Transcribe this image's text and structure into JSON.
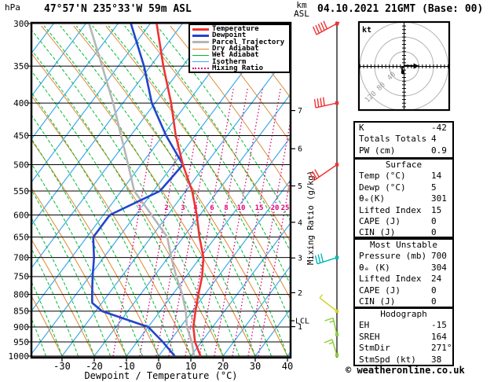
{
  "header": {
    "station_title": "47°57'N 235°33'W 59m ASL",
    "datetime_title": "04.10.2021 21GMT (Base: 00)"
  },
  "axes": {
    "pressure_unit": "hPa",
    "pressure_ticks": [
      300,
      350,
      400,
      450,
      500,
      550,
      600,
      650,
      700,
      750,
      800,
      850,
      900,
      950,
      1000
    ],
    "temp_ticks": [
      -30,
      -20,
      -10,
      0,
      10,
      20,
      30,
      40
    ],
    "xlabel": "Dewpoint / Temperature (°C)",
    "km_unit_line1": "km",
    "km_unit_line2": "ASL",
    "km_ticks": [
      1,
      2,
      3,
      4,
      5,
      6,
      7
    ],
    "lcl_label": "LCL",
    "mixing_axis_label": "Mixing Ratio (g/kg)"
  },
  "legend": [
    {
      "label": "Temperature",
      "color": "#ee3333",
      "weight": 3,
      "style": "solid"
    },
    {
      "label": "Dewpoint",
      "color": "#2244cc",
      "weight": 3,
      "style": "solid"
    },
    {
      "label": "Parcel Trajectory",
      "color": "#b5b5b5",
      "weight": 3,
      "style": "solid"
    },
    {
      "label": "Dry Adiabat",
      "color": "#dd8833",
      "weight": 1,
      "style": "solid"
    },
    {
      "label": "Wet Adiabat",
      "color": "#00bb33",
      "weight": 1,
      "style": "solid"
    },
    {
      "label": "Isotherm",
      "color": "#3aaaee",
      "weight": 1,
      "style": "solid"
    },
    {
      "label": "Mixing Ratio",
      "color": "#dd0077",
      "weight": 2,
      "style": "dotted"
    }
  ],
  "hodograph": {
    "unit_label": "kt",
    "rings_kt": [
      40,
      80,
      120
    ],
    "tick_step_kt": 10,
    "trace_uv_kt": [
      [
        -4,
        -16
      ],
      [
        -6,
        -4
      ],
      [
        2,
        2
      ],
      [
        30,
        1
      ]
    ],
    "storm_dir_deg": 271,
    "storm_speed_kt": 38
  },
  "tables": [
    {
      "title": null,
      "rows": [
        [
          "K",
          "-42"
        ],
        [
          "Totals Totals",
          "4"
        ],
        [
          "PW (cm)",
          "0.9"
        ]
      ]
    },
    {
      "title": "Surface",
      "rows": [
        [
          "Temp (°C)",
          "14"
        ],
        [
          "Dewp (°C)",
          "5"
        ],
        [
          "θₑ(K)",
          "301"
        ],
        [
          "Lifted Index",
          "15"
        ],
        [
          "CAPE (J)",
          "0"
        ],
        [
          "CIN (J)",
          "0"
        ]
      ]
    },
    {
      "title": "Most Unstable",
      "rows": [
        [
          "Pressure (mb)",
          "700"
        ],
        [
          "θₑ (K)",
          "304"
        ],
        [
          "Lifted Index",
          "24"
        ],
        [
          "CAPE (J)",
          "0"
        ],
        [
          "CIN (J)",
          "0"
        ]
      ]
    },
    {
      "title": "Hodograph",
      "rows": [
        [
          "EH",
          "-15"
        ],
        [
          "SREH",
          "164"
        ],
        [
          "StmDir",
          "271°"
        ],
        [
          "StmSpd (kt)",
          "38"
        ]
      ]
    }
  ],
  "footer": {
    "credit": "© weatheronline.co.uk"
  },
  "colors": {
    "temperature": "#ee3333",
    "dewpoint": "#2244cc",
    "parcel": "#b5b5b5",
    "dry_adiabat": "#dd8833",
    "wet_adiabat": "#00bb33",
    "isotherm": "#3aaaee",
    "mixing_ratio": "#dd0077",
    "barb_red": "#ee3333",
    "barb_cyan": "#00b8b8",
    "barb_yellow": "#d4d42a",
    "barb_green": "#8ccf3a",
    "hodo_ring": "#b0b0b0",
    "frame": "#000000"
  },
  "wind_barbs": [
    {
      "pressure": 300,
      "color_key": "barb_red",
      "full": 5,
      "half": 0,
      "tail_dx": -26,
      "tail_dy": 14,
      "tick_side": -1,
      "arrow": true
    },
    {
      "pressure": 400,
      "color_key": "barb_red",
      "full": 4,
      "half": 0,
      "tail_dx": -27,
      "tail_dy": 6,
      "tick_side": -1,
      "arrow": false
    },
    {
      "pressure": 500,
      "color_key": "barb_red",
      "full": 3,
      "half": 0,
      "tail_dx": -29,
      "tail_dy": 20,
      "tick_side": -1,
      "arrow": false
    },
    {
      "pressure": 700,
      "color_key": "barb_cyan",
      "full": 3,
      "half": 0,
      "tail_dx": -25,
      "tail_dy": 8,
      "tick_side": -1,
      "arrow": false
    },
    {
      "pressure": 850,
      "color_key": "barb_yellow",
      "full": 0,
      "half": 1,
      "tail_dx": -22,
      "tail_dy": -17,
      "tick_side": -1,
      "arrow": false
    },
    {
      "pressure": 925,
      "color_key": "barb_green",
      "full": 1,
      "half": 1,
      "tail_dx": -5,
      "tail_dy": -21,
      "tick_side": 1,
      "arrow": false
    },
    {
      "pressure": 997,
      "color_key": "barb_green",
      "full": 1,
      "half": 1,
      "tail_dx": -6,
      "tail_dy": -20,
      "tick_side": 1,
      "arrow": false
    }
  ],
  "chart_data": {
    "type": "line",
    "title": "Skew-T log-P sounding, 47°57'N 235°33'W 59m ASL, 04.10.2021 21GMT",
    "x_axis": {
      "label": "Dewpoint / Temperature (°C)",
      "ticks": [
        -30,
        -20,
        -10,
        0,
        10,
        20,
        30,
        40
      ],
      "range": [
        -40,
        41
      ]
    },
    "y_axis": {
      "label": "hPa",
      "scale": "log",
      "range": [
        1000,
        300
      ],
      "ticks": [
        300,
        350,
        400,
        450,
        500,
        550,
        600,
        650,
        700,
        750,
        800,
        850,
        900,
        950,
        1000
      ]
    },
    "secondary_y_axis": {
      "label": "km ASL",
      "ticks": [
        7,
        6,
        5,
        4,
        3,
        2,
        1
      ]
    },
    "mixing_ratio_lines_g_kg": [
      1,
      2,
      3,
      4,
      6,
      8,
      10,
      15,
      20,
      25
    ],
    "lcl_pressure_hpa": 880,
    "grid": "skew-t background: isotherms, dry/wet adiabats, mixing ratio lines",
    "legend_position": "top-right",
    "series": [
      {
        "name": "Temperature",
        "color": "#ee3333",
        "points_p_T": [
          [
            300,
            -78
          ],
          [
            350,
            -66
          ],
          [
            400,
            -55
          ],
          [
            450,
            -46
          ],
          [
            500,
            -37
          ],
          [
            550,
            -28
          ],
          [
            600,
            -21
          ],
          [
            650,
            -15
          ],
          [
            700,
            -9
          ],
          [
            750,
            -5
          ],
          [
            800,
            -2
          ],
          [
            850,
            1
          ],
          [
            900,
            4
          ],
          [
            950,
            8
          ],
          [
            1000,
            13
          ]
        ]
      },
      {
        "name": "Dewpoint",
        "color": "#2244cc",
        "points_p_T": [
          [
            300,
            -86
          ],
          [
            350,
            -72
          ],
          [
            400,
            -61
          ],
          [
            450,
            -49
          ],
          [
            500,
            -37
          ],
          [
            550,
            -38
          ],
          [
            600,
            -48
          ],
          [
            650,
            -48
          ],
          [
            700,
            -43
          ],
          [
            750,
            -39
          ],
          [
            800,
            -35
          ],
          [
            825,
            -33
          ],
          [
            850,
            -28
          ],
          [
            900,
            -10
          ],
          [
            950,
            -2
          ],
          [
            1000,
            5
          ]
        ]
      },
      {
        "name": "Parcel Trajectory",
        "color": "#b5b5b5",
        "points_p_T": [
          [
            300,
            -99
          ],
          [
            350,
            -85
          ],
          [
            400,
            -73
          ],
          [
            450,
            -63
          ],
          [
            500,
            -54
          ],
          [
            550,
            -46
          ],
          [
            600,
            -35
          ],
          [
            650,
            -25
          ],
          [
            700,
            -19
          ],
          [
            750,
            -13
          ],
          [
            800,
            -7
          ],
          [
            850,
            -2
          ],
          [
            900,
            2
          ],
          [
            950,
            7
          ],
          [
            1000,
            11
          ]
        ]
      }
    ]
  }
}
